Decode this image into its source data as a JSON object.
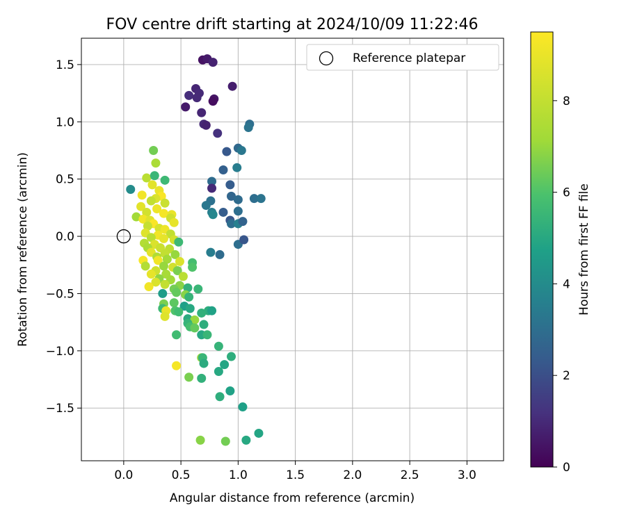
{
  "chart_data": {
    "type": "scatter",
    "title": "FOV centre drift starting at 2024/10/09 11:22:46",
    "xlabel": "Angular distance from reference (arcmin)",
    "ylabel": "Rotation from reference (arcmin)",
    "xlim": [
      -0.37,
      3.32
    ],
    "ylim": [
      -1.96,
      1.73
    ],
    "xticks": [
      0.0,
      0.5,
      1.0,
      1.5,
      2.0,
      2.5,
      3.0
    ],
    "xtick_labels": [
      "0.0",
      "0.5",
      "1.0",
      "1.5",
      "2.0",
      "2.5",
      "3.0"
    ],
    "yticks": [
      -1.5,
      -1.0,
      -0.5,
      0.0,
      0.5,
      1.0,
      1.5
    ],
    "ytick_labels": [
      "−1.5",
      "−1.0",
      "−0.5",
      "0.0",
      "0.5",
      "1.0",
      "1.5"
    ],
    "grid": true,
    "legend": {
      "position": "top-right",
      "entries": [
        "Reference platepar"
      ]
    },
    "reference_point": {
      "x": 0.0,
      "y": 0.0
    },
    "colorbar": {
      "label": "Hours from first FF file",
      "range": [
        0,
        9.5
      ],
      "ticks": [
        0,
        2,
        4,
        6,
        8
      ],
      "tick_labels": [
        "0",
        "2",
        "4",
        "6",
        "8"
      ],
      "colormap": "viridis"
    },
    "points": [
      {
        "x": 0.69,
        "y": 1.54,
        "h": 0.4
      },
      {
        "x": 0.73,
        "y": 1.55,
        "h": 0.6
      },
      {
        "x": 0.78,
        "y": 1.52,
        "h": 0.8
      },
      {
        "x": 0.95,
        "y": 1.31,
        "h": 0.7
      },
      {
        "x": 0.63,
        "y": 1.29,
        "h": 0.9
      },
      {
        "x": 0.66,
        "y": 1.25,
        "h": 1.0
      },
      {
        "x": 0.57,
        "y": 1.23,
        "h": 1.1
      },
      {
        "x": 0.64,
        "y": 1.21,
        "h": 1.0
      },
      {
        "x": 0.79,
        "y": 1.2,
        "h": 0.5
      },
      {
        "x": 0.78,
        "y": 1.18,
        "h": 0.3
      },
      {
        "x": 0.54,
        "y": 1.13,
        "h": 0.6
      },
      {
        "x": 0.68,
        "y": 1.08,
        "h": 0.9
      },
      {
        "x": 0.7,
        "y": 0.98,
        "h": 1.0
      },
      {
        "x": 0.72,
        "y": 0.97,
        "h": 0.8
      },
      {
        "x": 0.82,
        "y": 0.9,
        "h": 1.2
      },
      {
        "x": 1.1,
        "y": 0.98,
        "h": 3.0
      },
      {
        "x": 1.09,
        "y": 0.95,
        "h": 3.2
      },
      {
        "x": 1.0,
        "y": 0.77,
        "h": 2.8
      },
      {
        "x": 1.03,
        "y": 0.75,
        "h": 3.3
      },
      {
        "x": 0.9,
        "y": 0.74,
        "h": 2.3
      },
      {
        "x": 0.99,
        "y": 0.6,
        "h": 3.5
      },
      {
        "x": 0.87,
        "y": 0.58,
        "h": 2.5
      },
      {
        "x": 0.77,
        "y": 0.48,
        "h": 2.9
      },
      {
        "x": 0.93,
        "y": 0.45,
        "h": 2.4
      },
      {
        "x": 0.77,
        "y": 0.42,
        "h": 1.0
      },
      {
        "x": 0.94,
        "y": 0.35,
        "h": 2.7
      },
      {
        "x": 1.0,
        "y": 0.32,
        "h": 2.9
      },
      {
        "x": 1.14,
        "y": 0.33,
        "h": 3.0
      },
      {
        "x": 1.2,
        "y": 0.33,
        "h": 3.2
      },
      {
        "x": 0.76,
        "y": 0.31,
        "h": 3.1
      },
      {
        "x": 0.72,
        "y": 0.27,
        "h": 3.3
      },
      {
        "x": 1.0,
        "y": 0.22,
        "h": 3.0
      },
      {
        "x": 0.87,
        "y": 0.21,
        "h": 2.4
      },
      {
        "x": 0.77,
        "y": 0.21,
        "h": 3.5
      },
      {
        "x": 0.78,
        "y": 0.19,
        "h": 3.8
      },
      {
        "x": 0.93,
        "y": 0.14,
        "h": 2.2
      },
      {
        "x": 0.94,
        "y": 0.11,
        "h": 3.0
      },
      {
        "x": 1.0,
        "y": 0.11,
        "h": 3.6
      },
      {
        "x": 1.04,
        "y": 0.13,
        "h": 2.6
      },
      {
        "x": 1.0,
        "y": -0.07,
        "h": 3.0
      },
      {
        "x": 1.05,
        "y": -0.03,
        "h": 2.2
      },
      {
        "x": 0.76,
        "y": -0.14,
        "h": 3.5
      },
      {
        "x": 0.84,
        "y": -0.16,
        "h": 2.9
      },
      {
        "x": 0.06,
        "y": 0.41,
        "h": 4.0
      },
      {
        "x": 0.26,
        "y": 0.75,
        "h": 6.5
      },
      {
        "x": 0.28,
        "y": 0.64,
        "h": 7.4
      },
      {
        "x": 0.2,
        "y": 0.51,
        "h": 7.8
      },
      {
        "x": 0.27,
        "y": 0.53,
        "h": 5.5
      },
      {
        "x": 0.36,
        "y": 0.49,
        "h": 5.6
      },
      {
        "x": 0.25,
        "y": 0.45,
        "h": 8.8
      },
      {
        "x": 0.31,
        "y": 0.4,
        "h": 9.0
      },
      {
        "x": 0.16,
        "y": 0.36,
        "h": 9.2
      },
      {
        "x": 0.33,
        "y": 0.35,
        "h": 9.4
      },
      {
        "x": 0.28,
        "y": 0.33,
        "h": 8.6
      },
      {
        "x": 0.24,
        "y": 0.31,
        "h": 8.0
      },
      {
        "x": 0.36,
        "y": 0.29,
        "h": 8.2
      },
      {
        "x": 0.15,
        "y": 0.26,
        "h": 8.8
      },
      {
        "x": 0.29,
        "y": 0.24,
        "h": 9.1
      },
      {
        "x": 0.2,
        "y": 0.21,
        "h": 8.4
      },
      {
        "x": 0.35,
        "y": 0.2,
        "h": 9.3
      },
      {
        "x": 0.42,
        "y": 0.19,
        "h": 9.0
      },
      {
        "x": 0.11,
        "y": 0.17,
        "h": 7.2
      },
      {
        "x": 0.17,
        "y": 0.15,
        "h": 9.2
      },
      {
        "x": 0.23,
        "y": 0.14,
        "h": 8.7
      },
      {
        "x": 0.41,
        "y": 0.16,
        "h": 8.3
      },
      {
        "x": 0.26,
        "y": 0.11,
        "h": 9.4
      },
      {
        "x": 0.44,
        "y": 0.12,
        "h": 8.9
      },
      {
        "x": 0.21,
        "y": 0.09,
        "h": 8.1
      },
      {
        "x": 0.31,
        "y": 0.07,
        "h": 8.5
      },
      {
        "x": 0.36,
        "y": 0.06,
        "h": 9.1
      },
      {
        "x": 0.19,
        "y": 0.03,
        "h": 8.7
      },
      {
        "x": 0.3,
        "y": 0.01,
        "h": 9.2
      },
      {
        "x": 0.41,
        "y": 0.02,
        "h": 8.0
      },
      {
        "x": 0.24,
        "y": -0.01,
        "h": 7.8
      },
      {
        "x": 0.35,
        "y": -0.02,
        "h": 8.9
      },
      {
        "x": 0.44,
        "y": -0.03,
        "h": 8.4
      },
      {
        "x": 0.18,
        "y": -0.06,
        "h": 7.6
      },
      {
        "x": 0.27,
        "y": -0.07,
        "h": 8.6
      },
      {
        "x": 0.48,
        "y": -0.05,
        "h": 5.6
      },
      {
        "x": 0.21,
        "y": -0.1,
        "h": 7.4
      },
      {
        "x": 0.32,
        "y": -0.1,
        "h": 8.2
      },
      {
        "x": 0.4,
        "y": -0.11,
        "h": 7.9
      },
      {
        "x": 0.24,
        "y": -0.14,
        "h": 8.8
      },
      {
        "x": 0.36,
        "y": -0.15,
        "h": 8.0
      },
      {
        "x": 0.45,
        "y": -0.16,
        "h": 7.0
      },
      {
        "x": 0.29,
        "y": -0.18,
        "h": 7.5
      },
      {
        "x": 0.17,
        "y": -0.21,
        "h": 9.3
      },
      {
        "x": 0.38,
        "y": -0.2,
        "h": 7.2
      },
      {
        "x": 0.3,
        "y": -0.21,
        "h": 9.2
      },
      {
        "x": 0.49,
        "y": -0.22,
        "h": 8.6
      },
      {
        "x": 0.6,
        "y": -0.23,
        "h": 5.8
      },
      {
        "x": 0.19,
        "y": -0.26,
        "h": 7.6
      },
      {
        "x": 0.35,
        "y": -0.26,
        "h": 7.0
      },
      {
        "x": 0.43,
        "y": -0.27,
        "h": 8.4
      },
      {
        "x": 0.6,
        "y": -0.27,
        "h": 6.0
      },
      {
        "x": 0.28,
        "y": -0.3,
        "h": 8.3
      },
      {
        "x": 0.47,
        "y": -0.3,
        "h": 6.6
      },
      {
        "x": 0.24,
        "y": -0.33,
        "h": 8.9
      },
      {
        "x": 0.37,
        "y": -0.33,
        "h": 7.3
      },
      {
        "x": 0.52,
        "y": -0.35,
        "h": 7.8
      },
      {
        "x": 0.31,
        "y": -0.37,
        "h": 6.9
      },
      {
        "x": 0.41,
        "y": -0.38,
        "h": 7.2
      },
      {
        "x": 0.28,
        "y": -0.4,
        "h": 8.6
      },
      {
        "x": 0.36,
        "y": -0.42,
        "h": 8.0
      },
      {
        "x": 0.49,
        "y": -0.43,
        "h": 6.8
      },
      {
        "x": 0.22,
        "y": -0.44,
        "h": 9.2
      },
      {
        "x": 0.44,
        "y": -0.46,
        "h": 6.5
      },
      {
        "x": 0.56,
        "y": -0.45,
        "h": 5.3
      },
      {
        "x": 0.65,
        "y": -0.46,
        "h": 5.5
      },
      {
        "x": 0.34,
        "y": -0.5,
        "h": 4.6
      },
      {
        "x": 0.46,
        "y": -0.49,
        "h": 6.3
      },
      {
        "x": 0.54,
        "y": -0.51,
        "h": 6.8
      },
      {
        "x": 0.57,
        "y": -0.53,
        "h": 5.4
      },
      {
        "x": 0.35,
        "y": -0.59,
        "h": 6.6
      },
      {
        "x": 0.44,
        "y": -0.58,
        "h": 6.2
      },
      {
        "x": 0.53,
        "y": -0.61,
        "h": 4.7
      },
      {
        "x": 0.34,
        "y": -0.63,
        "h": 5.6
      },
      {
        "x": 0.58,
        "y": -0.63,
        "h": 5.0
      },
      {
        "x": 0.37,
        "y": -0.65,
        "h": 9.0
      },
      {
        "x": 0.45,
        "y": -0.65,
        "h": 6.0
      },
      {
        "x": 0.48,
        "y": -0.66,
        "h": 5.7
      },
      {
        "x": 0.74,
        "y": -0.65,
        "h": 5.2
      },
      {
        "x": 0.77,
        "y": -0.65,
        "h": 4.8
      },
      {
        "x": 0.68,
        "y": -0.67,
        "h": 5.3
      },
      {
        "x": 0.36,
        "y": -0.7,
        "h": 8.7
      },
      {
        "x": 0.56,
        "y": -0.72,
        "h": 5.1
      },
      {
        "x": 0.62,
        "y": -0.73,
        "h": 7.0
      },
      {
        "x": 0.56,
        "y": -0.76,
        "h": 5.4
      },
      {
        "x": 0.7,
        "y": -0.77,
        "h": 5.2
      },
      {
        "x": 0.58,
        "y": -0.79,
        "h": 5.8
      },
      {
        "x": 0.62,
        "y": -0.8,
        "h": 6.3
      },
      {
        "x": 0.68,
        "y": -0.86,
        "h": 5.0
      },
      {
        "x": 0.73,
        "y": -0.86,
        "h": 5.5
      },
      {
        "x": 0.46,
        "y": -0.86,
        "h": 5.7
      },
      {
        "x": 0.83,
        "y": -0.96,
        "h": 5.4
      },
      {
        "x": 0.68,
        "y": -1.06,
        "h": 7.0
      },
      {
        "x": 0.69,
        "y": -1.06,
        "h": 5.5
      },
      {
        "x": 0.94,
        "y": -1.05,
        "h": 5.2
      },
      {
        "x": 0.7,
        "y": -1.11,
        "h": 5.1
      },
      {
        "x": 0.88,
        "y": -1.12,
        "h": 4.9
      },
      {
        "x": 0.46,
        "y": -1.13,
        "h": 9.3
      },
      {
        "x": 0.83,
        "y": -1.18,
        "h": 5.0
      },
      {
        "x": 0.57,
        "y": -1.23,
        "h": 6.6
      },
      {
        "x": 0.68,
        "y": -1.24,
        "h": 5.3
      },
      {
        "x": 0.93,
        "y": -1.35,
        "h": 4.8
      },
      {
        "x": 0.84,
        "y": -1.4,
        "h": 5.2
      },
      {
        "x": 1.04,
        "y": -1.49,
        "h": 4.7
      },
      {
        "x": 0.67,
        "y": -1.78,
        "h": 6.8
      },
      {
        "x": 0.89,
        "y": -1.79,
        "h": 6.5
      },
      {
        "x": 1.07,
        "y": -1.78,
        "h": 5.0
      },
      {
        "x": 1.18,
        "y": -1.72,
        "h": 4.9
      }
    ]
  }
}
